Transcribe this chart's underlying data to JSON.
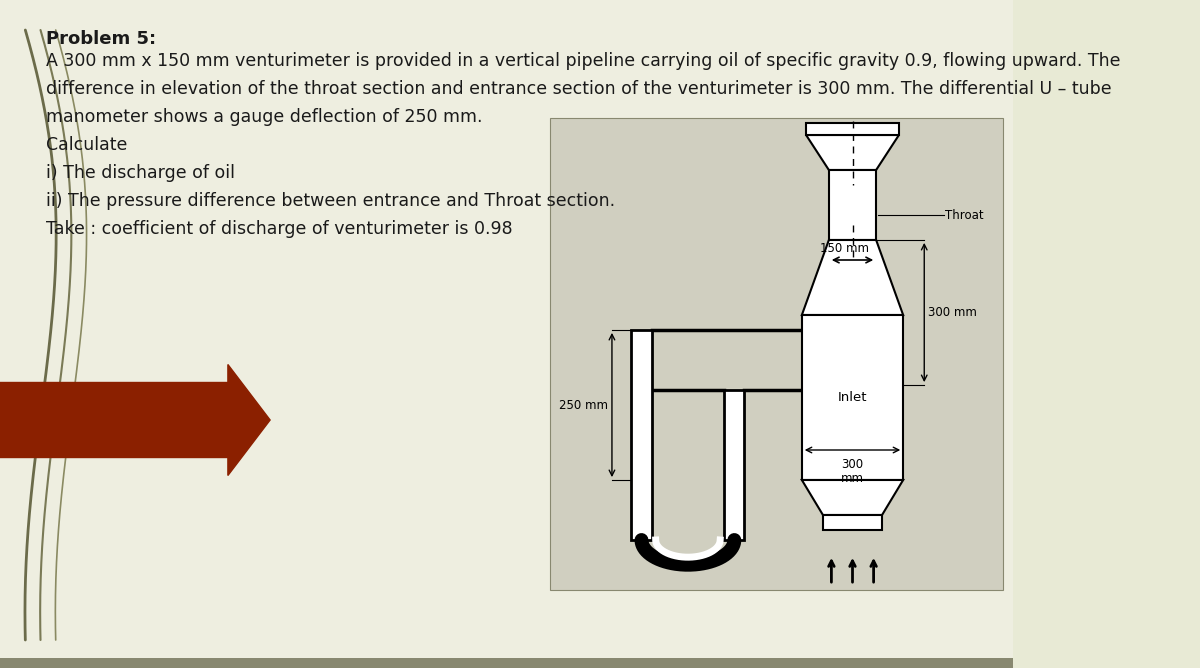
{
  "bg_color": "#e8ead5",
  "panel_color": "#eeeee0",
  "title": "Problem 5:",
  "line1": "A 300 mm x 150 mm venturimeter is provided in a vertical pipeline carrying oil of specific gravity 0.9, flowing upward. The",
  "line2": "difference in elevation of the throat section and entrance section of the venturimeter is 300 mm. The differential U – tube",
  "line3": "manometer shows a gauge deflection of 250 mm.",
  "line4": "Calculate",
  "line5": "i) The discharge of oil",
  "line6": "ii) The pressure difference between entrance and Throat section.",
  "line7": "Take : coefficient of discharge of venturimeter is 0.98",
  "arrow_color": "#8b2000",
  "text_color": "#1a1a1a",
  "bottom_bar_color": "#888870",
  "diag_bg": "#d0cfc0",
  "title_fontsize": 13,
  "body_fontsize": 12.5,
  "diag_label_fontsize": 8.5,
  "curve_colors": [
    "#6b6b4a",
    "#7a7a56",
    "#8a8a62"
  ],
  "curve_lws": [
    2.0,
    1.5,
    1.2
  ]
}
